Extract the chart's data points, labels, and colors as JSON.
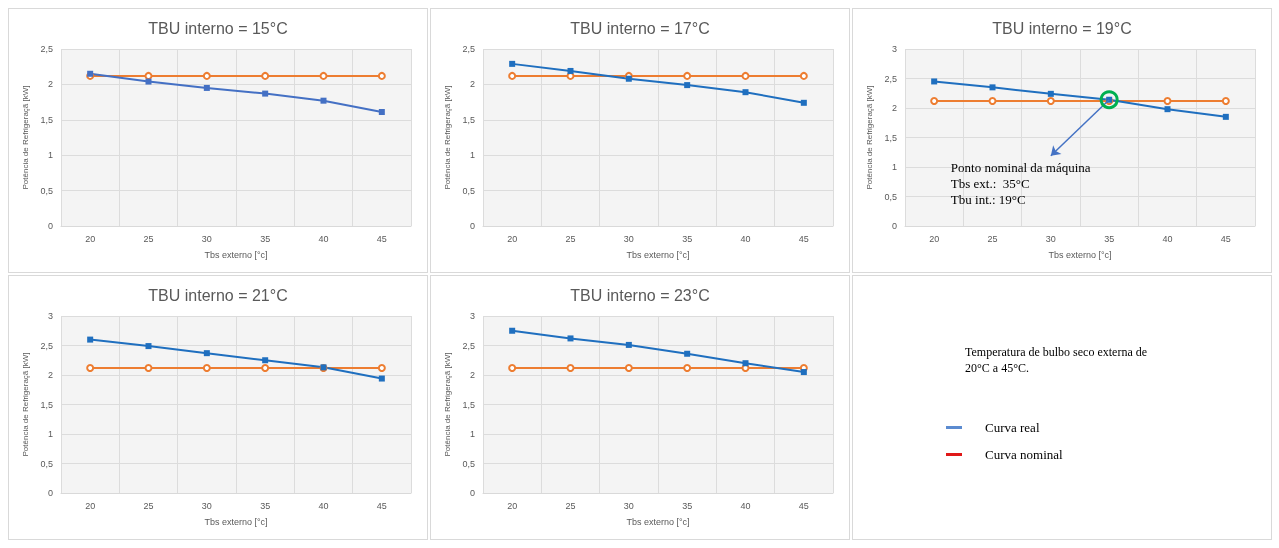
{
  "chart_data": [
    {
      "type": "line",
      "title": "TBU interno = 15°C",
      "xlabel": "Tbs externo [°c]",
      "ylabel": "Potência de Refrigeraçã [kW]",
      "categories": [
        "20",
        "25",
        "30",
        "35",
        "40",
        "45"
      ],
      "ylim": [
        0,
        2.5
      ],
      "yticks": [
        0,
        {
          "value": 0.5,
          "label": "0,5"
        },
        1,
        {
          "value": 1.5,
          "label": "1,5"
        },
        2,
        {
          "value": 2.5,
          "label": "2,5"
        }
      ],
      "grid": true,
      "series": [
        {
          "color": "#ed7d31",
          "marker": "circle",
          "values": [
            2.12,
            2.12,
            2.12,
            2.12,
            2.12,
            2.12
          ]
        },
        {
          "color": "#4470c4",
          "marker": "square",
          "values": [
            2.15,
            2.04,
            1.95,
            1.87,
            1.77,
            1.61
          ]
        }
      ]
    },
    {
      "type": "line",
      "title": "TBU interno = 17°C",
      "xlabel": "Tbs externo [°c]",
      "ylabel": "Potência de Refrigeraçã [kW]",
      "categories": [
        "20",
        "25",
        "30",
        "35",
        "40",
        "45"
      ],
      "ylim": [
        0,
        2.5
      ],
      "yticks": [
        0,
        {
          "value": 0.5,
          "label": "0,5"
        },
        1,
        {
          "value": 1.5,
          "label": "1,5"
        },
        2,
        {
          "value": 2.5,
          "label": "2,5"
        }
      ],
      "grid": true,
      "series": [
        {
          "color": "#ed7d31",
          "marker": "circle",
          "values": [
            2.12,
            2.12,
            2.12,
            2.12,
            2.12,
            2.12
          ]
        },
        {
          "color": "#1f6fbf",
          "marker": "square",
          "values": [
            2.29,
            2.19,
            2.08,
            1.99,
            1.89,
            1.74
          ]
        }
      ]
    },
    {
      "type": "line",
      "title": "TBU interno = 19°C",
      "xlabel": "Tbs externo [°c]",
      "ylabel": "Potência de Refrigeraçã [kW]",
      "categories": [
        "20",
        "25",
        "30",
        "35",
        "40",
        "45"
      ],
      "ylim": [
        0,
        3
      ],
      "yticks": [
        0,
        {
          "value": 0.5,
          "label": "0,5"
        },
        1,
        {
          "value": 1.5,
          "label": "1,5"
        },
        2,
        {
          "value": 2.5,
          "label": "2,5"
        },
        3
      ],
      "grid": true,
      "annotations": [
        {
          "text": "Ponto nominal da máquina\nTbs ext.:  35°C\nTbu int.: 19°C",
          "x": "35",
          "y": 2.14
        }
      ],
      "series": [
        {
          "color": "#ed7d31",
          "marker": "circle",
          "values": [
            2.12,
            2.12,
            2.12,
            2.12,
            2.12,
            2.12
          ]
        },
        {
          "color": "#1f6fbf",
          "marker": "square",
          "values": [
            2.45,
            2.35,
            2.24,
            2.14,
            1.98,
            1.85
          ]
        }
      ]
    },
    {
      "type": "line",
      "title": "TBU interno = 21°C",
      "xlabel": "Tbs externo [°c]",
      "ylabel": "Potência de Refrigeraçã [kW]",
      "categories": [
        "20",
        "25",
        "30",
        "35",
        "40",
        "45"
      ],
      "ylim": [
        0,
        3
      ],
      "yticks": [
        0,
        {
          "value": 0.5,
          "label": "0,5"
        },
        1,
        {
          "value": 1.5,
          "label": "1,5"
        },
        2,
        {
          "value": 2.5,
          "label": "2,5"
        },
        3
      ],
      "grid": true,
      "series": [
        {
          "color": "#ed7d31",
          "marker": "circle",
          "values": [
            2.12,
            2.12,
            2.12,
            2.12,
            2.12,
            2.12
          ]
        },
        {
          "color": "#1f6fbf",
          "marker": "square",
          "values": [
            2.6,
            2.49,
            2.37,
            2.25,
            2.13,
            1.94
          ]
        }
      ]
    },
    {
      "type": "line",
      "title": "TBU interno = 23°C",
      "xlabel": "Tbs externo [°c]",
      "ylabel": "Potência de Refrigeraçã [kW]",
      "categories": [
        "20",
        "25",
        "30",
        "35",
        "40",
        "45"
      ],
      "ylim": [
        0,
        3
      ],
      "yticks": [
        0,
        {
          "value": 0.5,
          "label": "0,5"
        },
        1,
        {
          "value": 1.5,
          "label": "1,5"
        },
        2,
        {
          "value": 2.5,
          "label": "2,5"
        },
        3
      ],
      "grid": true,
      "series": [
        {
          "color": "#ed7d31",
          "marker": "circle",
          "values": [
            2.12,
            2.12,
            2.12,
            2.12,
            2.12,
            2.12
          ]
        },
        {
          "color": "#1f6fbf",
          "marker": "square",
          "values": [
            2.75,
            2.62,
            2.51,
            2.36,
            2.2,
            2.05
          ]
        }
      ]
    },
    {
      "type": "other",
      "annotations": [
        "Temperatura de bulbo seco externa de\n20°C a 45°C."
      ],
      "legend": "left",
      "series": [
        {
          "name": "Curva real",
          "color": "#5b8bd0"
        },
        {
          "name": "Curva nominal",
          "color": "#e01818"
        }
      ]
    }
  ]
}
